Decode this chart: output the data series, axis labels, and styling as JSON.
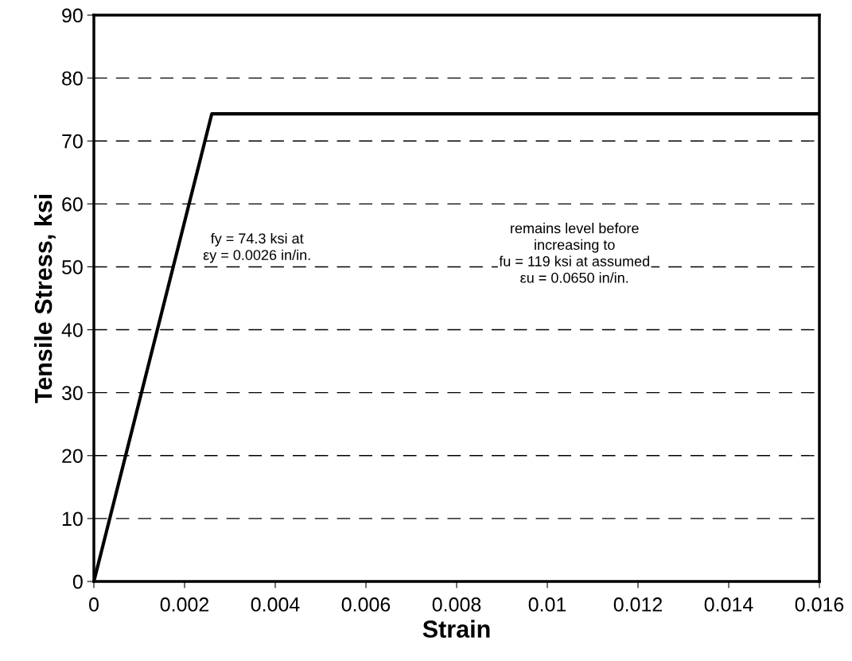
{
  "chart_data": {
    "type": "line",
    "xlabel": "Strain",
    "ylabel": "Tensile Stress, ksi",
    "x": [
      0,
      0.0026,
      0.016
    ],
    "series": [
      {
        "color": "#000000",
        "values": [
          0,
          74.3,
          74.3
        ]
      }
    ],
    "xlim": [
      0,
      0.016
    ],
    "xticks": [
      0,
      0.002,
      0.004,
      0.006,
      0.008,
      0.01,
      0.012,
      0.014,
      0.016
    ],
    "ylim": [
      0,
      90
    ],
    "yticks": [
      0,
      10,
      20,
      30,
      40,
      50,
      60,
      70,
      80,
      90
    ],
    "grid": "y",
    "legend": false,
    "marker": "none",
    "line_style": "solid",
    "annotations": [
      "fy = 74.3 ksi at\nεy = 0.0026 in/in.",
      "remains level before\nincreasing to\nfu = 119 ksi at assumed\nεu = 0.0650 in/in."
    ]
  }
}
